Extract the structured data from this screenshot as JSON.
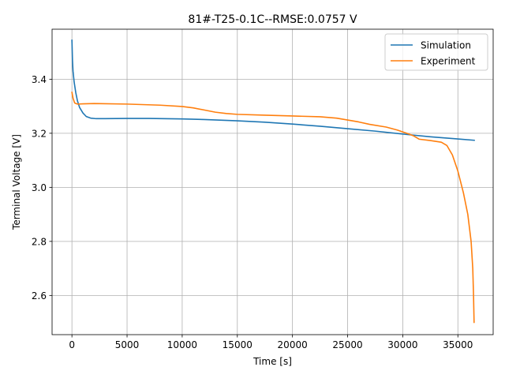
{
  "chart_data": {
    "type": "line",
    "title": "81#-T25-0.1C--RMSE:0.0757 V",
    "xlabel": "Time [s]",
    "ylabel": "Terminal Voltage [V]",
    "xlim": [
      -1800,
      38200
    ],
    "ylim": [
      2.455,
      3.585
    ],
    "xticks": [
      0,
      5000,
      10000,
      15000,
      20000,
      25000,
      30000,
      35000
    ],
    "yticks": [
      2.6,
      2.8,
      3.0,
      3.2,
      3.4
    ],
    "xtick_labels": [
      "0",
      "5000",
      "10000",
      "15000",
      "20000",
      "25000",
      "30000",
      "35000"
    ],
    "ytick_labels": [
      "2.6",
      "2.8",
      "3.0",
      "3.2",
      "3.4"
    ],
    "grid": true,
    "legend_position": "upper right",
    "series": [
      {
        "name": "Simulation",
        "color": "#1f77b4",
        "points": [
          [
            0,
            3.545
          ],
          [
            50,
            3.47
          ],
          [
            100,
            3.43
          ],
          [
            200,
            3.39
          ],
          [
            350,
            3.35
          ],
          [
            500,
            3.32
          ],
          [
            700,
            3.295
          ],
          [
            1000,
            3.275
          ],
          [
            1300,
            3.262
          ],
          [
            1700,
            3.256
          ],
          [
            2200,
            3.254
          ],
          [
            3000,
            3.254
          ],
          [
            5000,
            3.255
          ],
          [
            7000,
            3.255
          ],
          [
            10000,
            3.253
          ],
          [
            12000,
            3.251
          ],
          [
            15000,
            3.246
          ],
          [
            17500,
            3.241
          ],
          [
            20000,
            3.234
          ],
          [
            22500,
            3.226
          ],
          [
            25000,
            3.217
          ],
          [
            27500,
            3.208
          ],
          [
            30000,
            3.197
          ],
          [
            32500,
            3.187
          ],
          [
            35000,
            3.179
          ],
          [
            36500,
            3.174
          ]
        ]
      },
      {
        "name": "Experiment",
        "color": "#ff7f0e",
        "points": [
          [
            0,
            3.352
          ],
          [
            100,
            3.33
          ],
          [
            250,
            3.312
          ],
          [
            500,
            3.308
          ],
          [
            1000,
            3.309
          ],
          [
            2000,
            3.31
          ],
          [
            5000,
            3.308
          ],
          [
            8000,
            3.304
          ],
          [
            10000,
            3.299
          ],
          [
            11000,
            3.294
          ],
          [
            12000,
            3.286
          ],
          [
            13000,
            3.278
          ],
          [
            14000,
            3.273
          ],
          [
            15000,
            3.27
          ],
          [
            17500,
            3.267
          ],
          [
            20000,
            3.264
          ],
          [
            22500,
            3.261
          ],
          [
            24000,
            3.256
          ],
          [
            25000,
            3.249
          ],
          [
            26000,
            3.242
          ],
          [
            27000,
            3.233
          ],
          [
            28500,
            3.223
          ],
          [
            29500,
            3.212
          ],
          [
            30500,
            3.198
          ],
          [
            31000,
            3.19
          ],
          [
            31500,
            3.178
          ],
          [
            32500,
            3.173
          ],
          [
            33500,
            3.167
          ],
          [
            34000,
            3.155
          ],
          [
            34500,
            3.12
          ],
          [
            35000,
            3.06
          ],
          [
            35500,
            2.98
          ],
          [
            35900,
            2.9
          ],
          [
            36200,
            2.8
          ],
          [
            36350,
            2.7
          ],
          [
            36420,
            2.6
          ],
          [
            36470,
            2.5
          ]
        ]
      }
    ]
  }
}
